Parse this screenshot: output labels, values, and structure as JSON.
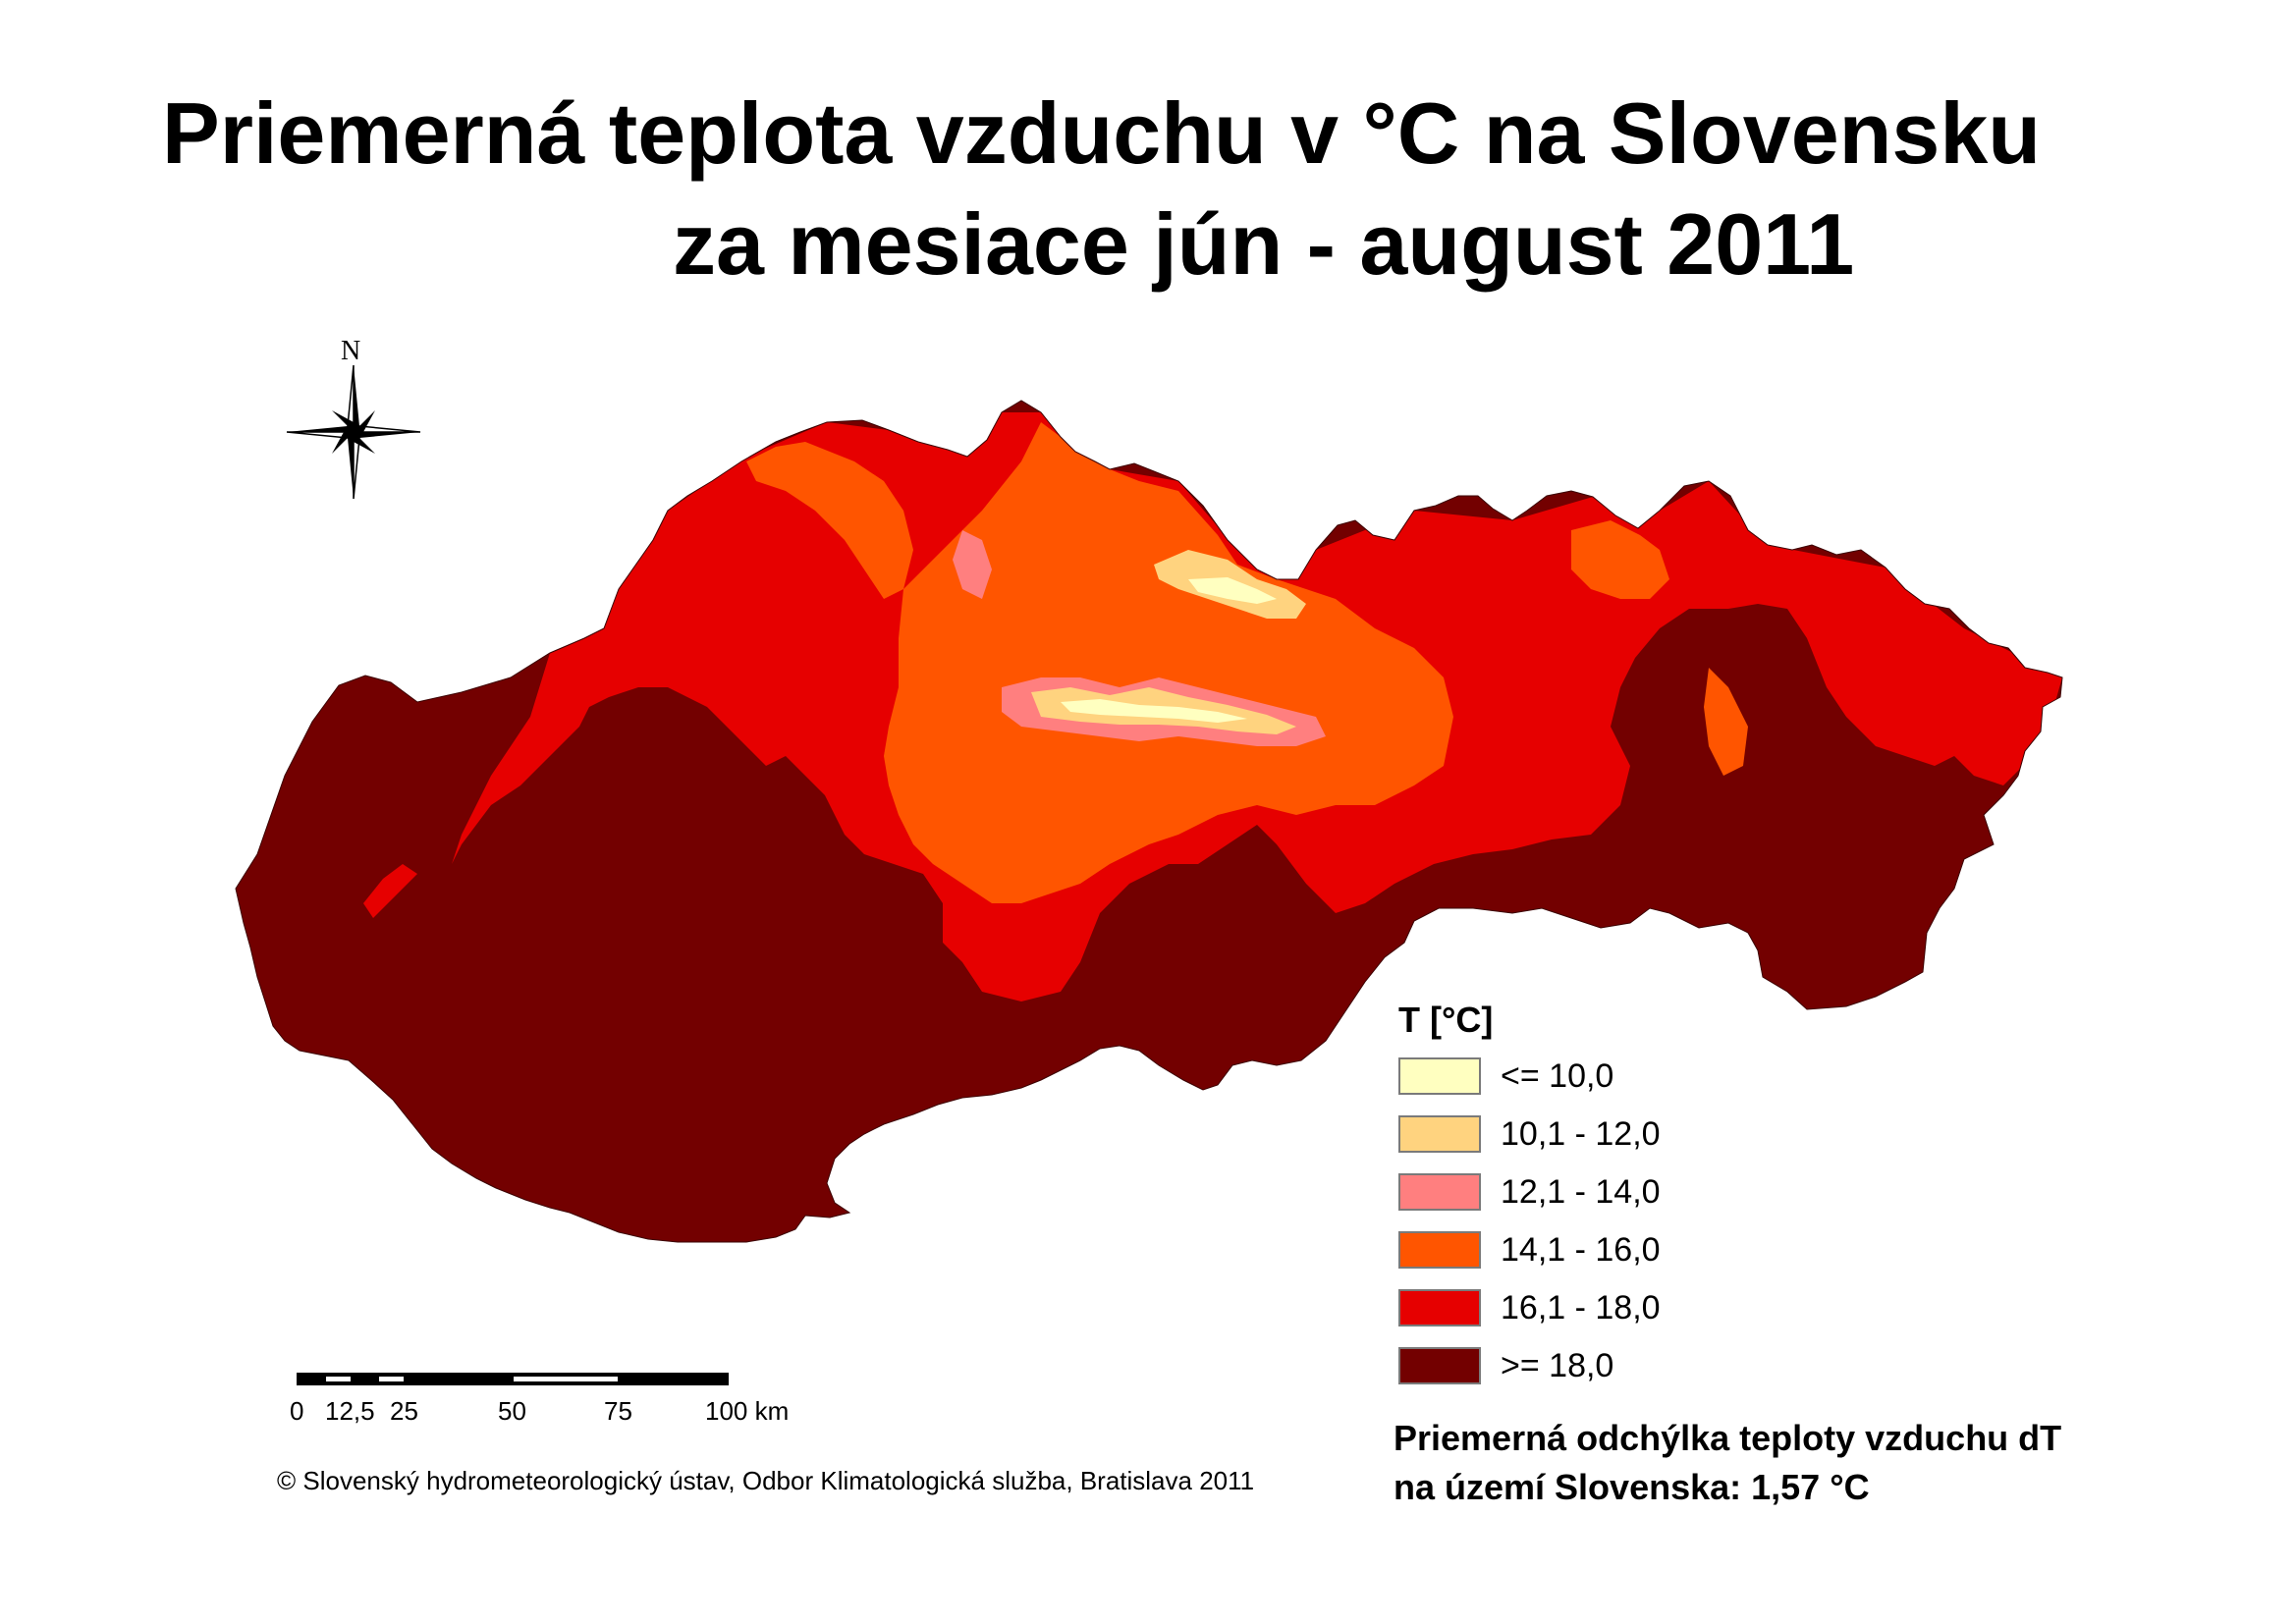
{
  "title": {
    "line1": "Priemerná teplota vzduchu v °C na Slovensku",
    "line2": "za mesiace jún - august 2011"
  },
  "compass": {
    "north": "N",
    "icon": "north-arrow-compass-rose"
  },
  "legend": {
    "title": "T [°C]",
    "items": [
      {
        "label": "<= 10,0",
        "color": "#ffffc0"
      },
      {
        "label": "10,1 - 12,0",
        "color": "#ffd37f"
      },
      {
        "label": "12,1 - 14,0",
        "color": "#ff7f7f"
      },
      {
        "label": "14,1 - 16,0",
        "color": "#ff5500"
      },
      {
        "label": "16,1 - 18,0",
        "color": "#e60000"
      },
      {
        "label": ">= 18,0",
        "color": "#730000"
      }
    ]
  },
  "scale": {
    "ticks": [
      "0",
      "12,5",
      "25",
      "50",
      "75",
      "100 km"
    ]
  },
  "copyright": "© Slovenský hydrometeorologický ústav, Odbor Klimatologická služba, Bratislava 2011",
  "stat": {
    "line1": "Priemerná odchýlka teploty vzduchu dT",
    "line2": "na území Slovenska: 1,57 °C"
  }
}
